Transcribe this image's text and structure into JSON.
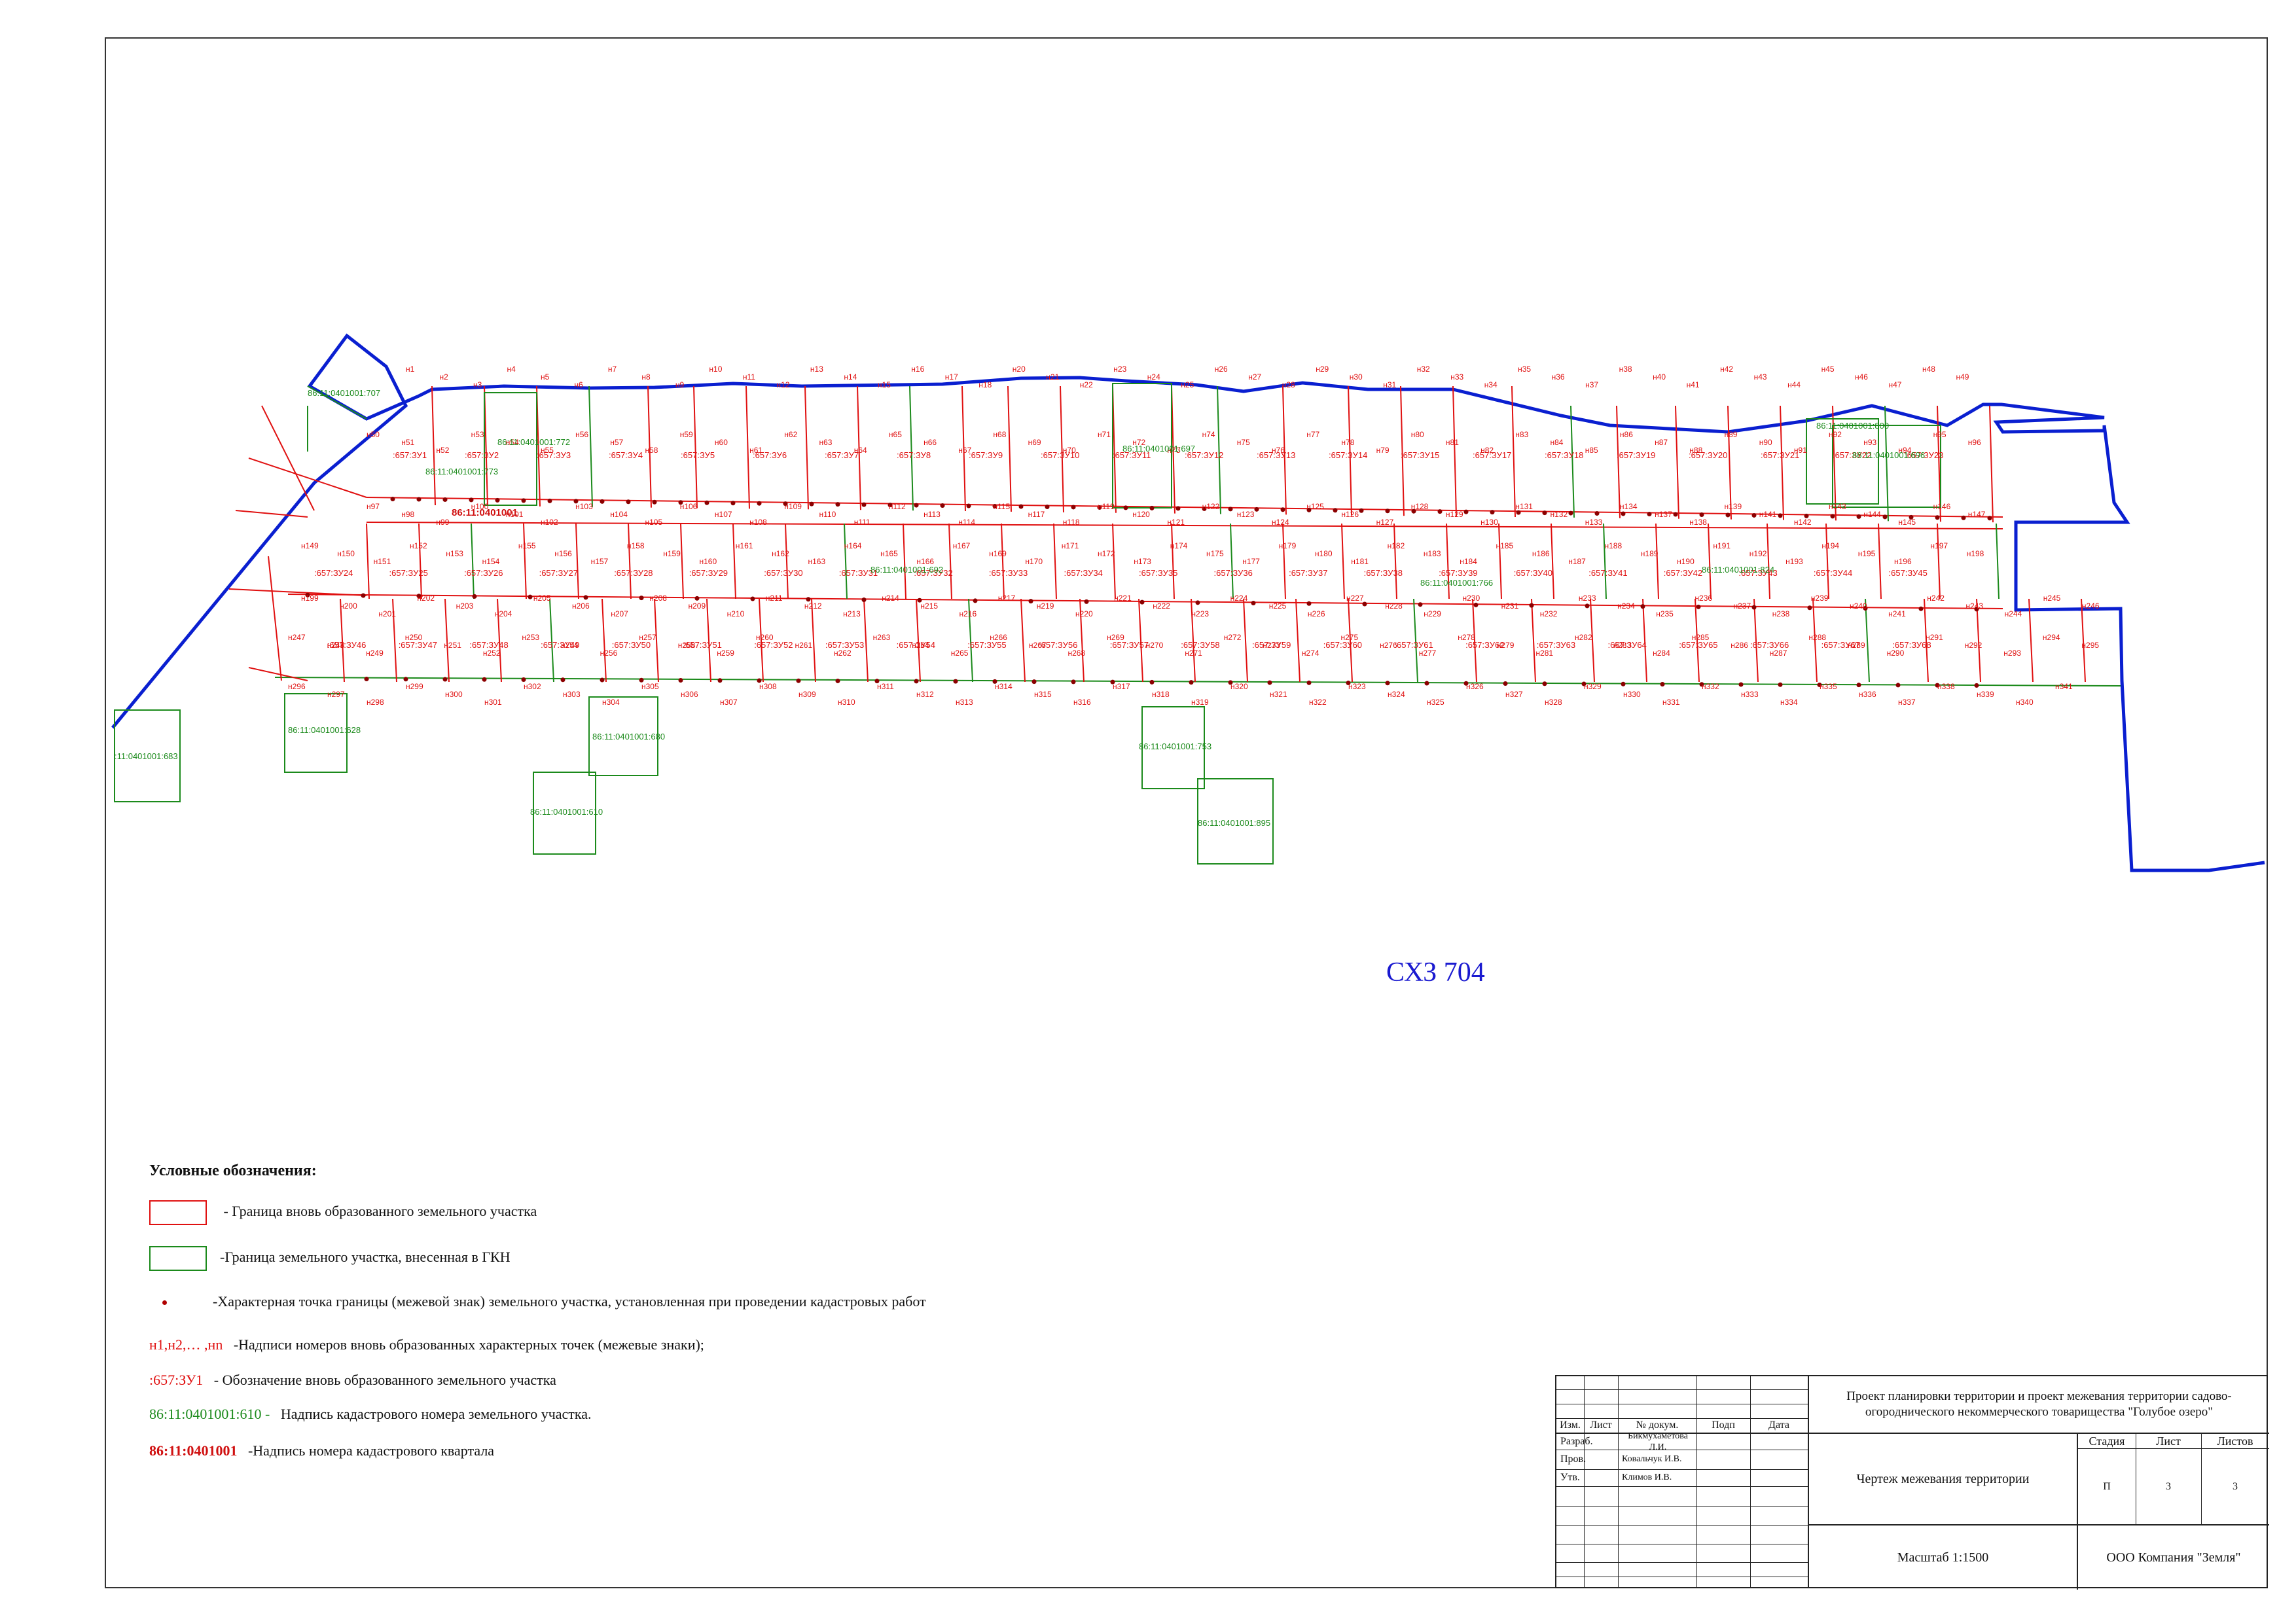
{
  "map": {
    "zone_label": "СХЗ 704",
    "quarter_label": "86:11:0401001",
    "cadastral_labels": [
      "86:11:0401001:707",
      "86:11:0401001:772",
      "86:11:0401001:773",
      "86:11:0401001:692",
      "86:11:0401001:697",
      "86:11:0401001:766",
      "86:11:0401001:824",
      "86:11:0401001:800",
      "86:11:0401001:696",
      "86:11:0401001:628",
      "86:11:0401001:680",
      "86:11:0401001:610",
      "86:11:0401001:753",
      "86:11:0401001:895",
      ":11:0401001:683"
    ],
    "parcel_labels": [
      ":657:ЗУ1",
      ":657:ЗУ2",
      ":657:ЗУ3",
      ":657:ЗУ4",
      ":657:ЗУ5",
      ":657:ЗУ6",
      ":657:ЗУ7",
      ":657:ЗУ8",
      ":657:ЗУ9",
      ":657:ЗУ10",
      ":657:ЗУ11",
      ":657:ЗУ12",
      ":657:ЗУ13",
      ":657:ЗУ14",
      ":657:ЗУ15",
      ":657:ЗУ17",
      ":657:ЗУ18",
      ":657:ЗУ19",
      ":657:ЗУ20",
      ":657:ЗУ21",
      ":657:ЗУ22",
      ":657:ЗУ23",
      ":657:ЗУ24",
      ":657:ЗУ25",
      ":657:ЗУ26",
      ":657:ЗУ27",
      ":657:ЗУ28",
      ":657:ЗУ29",
      ":657:ЗУ30",
      ":657:ЗУ31",
      ":657:ЗУ32",
      ":657:ЗУ33",
      ":657:ЗУ34",
      ":657:ЗУ35",
      ":657:ЗУ36",
      ":657:ЗУ37",
      ":657:ЗУ38",
      ":657:ЗУ39",
      ":657:ЗУ40",
      ":657:ЗУ41",
      ":657:ЗУ42",
      ":657:ЗУ43",
      ":657:ЗУ44",
      ":657:ЗУ45",
      ":657:ЗУ46",
      ":657:ЗУ47",
      ":657:ЗУ48",
      ":657:ЗУ49",
      ":657:ЗУ50",
      ":657:ЗУ51",
      ":657:ЗУ52",
      ":657:ЗУ53",
      ":657:ЗУ54",
      ":657:ЗУ55",
      ":657:ЗУ56",
      ":657:ЗУ57",
      ":657:ЗУ58",
      ":657:ЗУ59",
      ":657:ЗУ60",
      ":657:ЗУ61",
      ":657:ЗУ62",
      ":657:ЗУ63",
      ":657:ЗУ64",
      ":657:ЗУ65",
      ":657:ЗУ66",
      ":657:ЗУ67",
      ":657:ЗУ68"
    ],
    "point_labels": [
      "н1",
      "н2",
      "н3",
      "н4",
      "н5",
      "н6",
      "н7",
      "н8",
      "н9",
      "н10",
      "н11",
      "н12",
      "н13",
      "н14",
      "н15",
      "н16",
      "н17",
      "н18",
      "н20",
      "н21",
      "н22",
      "н23",
      "н24",
      "н25",
      "н26",
      "н27",
      "н28",
      "н29",
      "н30",
      "н31",
      "н32",
      "н33",
      "н34",
      "н35",
      "н36",
      "н37",
      "н38",
      "н40",
      "н41",
      "н42",
      "н43",
      "н44",
      "н45",
      "н46",
      "н47",
      "н48",
      "н49",
      "н50",
      "н51",
      "н52",
      "н53",
      "н54",
      "н55",
      "н56",
      "н57",
      "н58",
      "н59",
      "н60",
      "н61",
      "н62",
      "н63",
      "н64",
      "н65",
      "н66",
      "н67",
      "н68",
      "н69",
      "н70",
      "н71",
      "н72",
      "н73",
      "н74",
      "н75",
      "н76",
      "н77",
      "н78",
      "н79",
      "н80",
      "н81",
      "н82",
      "н83",
      "н84",
      "н85",
      "н86",
      "н87",
      "н88",
      "н89",
      "н90",
      "н91",
      "н92",
      "н93",
      "н94",
      "н95",
      "н96",
      "н97",
      "н98",
      "н99",
      "н100",
      "н101",
      "н102",
      "н103",
      "н104",
      "н105",
      "н106",
      "н107",
      "н108",
      "н109",
      "н110",
      "н111",
      "н112",
      "н113",
      "н114",
      "н115",
      "н117",
      "н118",
      "н119",
      "н120",
      "н121",
      "н122",
      "н123",
      "н124",
      "н125",
      "н126",
      "н127",
      "н128",
      "н129",
      "н130",
      "н131",
      "н132",
      "н133",
      "н134",
      "н137",
      "н138",
      "н139",
      "н141",
      "н142",
      "н143",
      "н144",
      "н145",
      "н146",
      "н147",
      "н149",
      "н150",
      "н151",
      "н152",
      "н153",
      "н154",
      "н155",
      "н156",
      "н157",
      "н158",
      "н159",
      "н160",
      "н161",
      "н162",
      "н163",
      "н164",
      "н165",
      "н166",
      "н167",
      "н169",
      "н170",
      "н171",
      "н172",
      "н173",
      "н174",
      "н175",
      "н177",
      "н179",
      "н180",
      "н181",
      "н182",
      "н183",
      "н184",
      "н185",
      "н186",
      "н187",
      "н188",
      "н189",
      "н190",
      "н191",
      "н192",
      "н193",
      "н194",
      "н195",
      "н196",
      "н197",
      "н198",
      "н199",
      "н200",
      "н201",
      "н202",
      "н203",
      "н204",
      "н205",
      "н206",
      "н207",
      "н208",
      "н209",
      "н210",
      "н211",
      "н212",
      "н213",
      "н214",
      "н215",
      "н216",
      "н217",
      "н219",
      "н220",
      "н221",
      "н222",
      "н223",
      "н224",
      "н225",
      "н226",
      "н227",
      "н228",
      "н229",
      "н230",
      "н231",
      "н232",
      "н233",
      "н234",
      "н235",
      "н236",
      "н237",
      "н238",
      "н239",
      "н240",
      "н241",
      "н242",
      "н243",
      "н244",
      "н245",
      "н246",
      "н247",
      "н248",
      "н249",
      "н250",
      "н251",
      "н252",
      "н253",
      "н254",
      "н256",
      "н257",
      "н258",
      "н259",
      "н260",
      "н261",
      "н262",
      "н263",
      "н264",
      "н265",
      "н266",
      "н267",
      "н268",
      "н269",
      "н270",
      "н271",
      "н272",
      "н273",
      "н274",
      "н275",
      "н276",
      "н277",
      "н278",
      "н279",
      "н281",
      "н282",
      "н283",
      "н284",
      "н285",
      "н286",
      "н287",
      "н288",
      "н289",
      "н290",
      "н291",
      "н292",
      "н293",
      "н294",
      "н295",
      "н296",
      "н297",
      "н298",
      "н299",
      "н300",
      "н301",
      "н302",
      "н303",
      "н304",
      "н305",
      "н306",
      "н307",
      "н308",
      "н309",
      "н310",
      "н311",
      "н312",
      "н313",
      "н314",
      "н315",
      "н316",
      "н317",
      "н318",
      "н319",
      "н320",
      "н321",
      "н322",
      "н323",
      "н324",
      "н325",
      "н326",
      "н327",
      "н328",
      "н329",
      "н330",
      "н331",
      "н332",
      "н333",
      "н334",
      "н335",
      "н336",
      "н337",
      "н338",
      "н339",
      "н340",
      "н341"
    ]
  },
  "legend": {
    "title": "Условные обозначения:",
    "new_boundary": " - Граница вновь образованного земельного участка",
    "gkn_boundary": "-Граница земельного участка, внесенная в ГКН",
    "char_point": "-Характерная точка границы (межевой знак) земельного участка, установленная при проведении кадастровых работ",
    "points_sample": "н1,н2,… ,нn",
    "points_text": "-Надписи номеров вновь образованных характерных точек (межевые знаки);",
    "parcel_sample": ":657:ЗУ1",
    "parcel_text": "-  Обозначение вновь образованного земельного участка",
    "cad_sample": "86:11:0401001:610 -",
    "cad_text": "Надпись кадастрового номера земельного  участка.",
    "quarter_sample": "86:11:0401001",
    "quarter_text": "-Надпись номера кадастрового квартала",
    "colors": {
      "new": "#e01010",
      "gkn": "#1b8a1b",
      "outer": "#0a1fd0"
    }
  },
  "stamp": {
    "project_title": "Проект планировки территории и проект межевания территории садово-огороднического некоммерческого товарищества \"Голубое озеро\"",
    "col_izm": "Изм.",
    "col_list": "Лист",
    "col_doc": "№ докум.",
    "col_sign": "Подп",
    "col_date": "Дата",
    "col_stage": "Стадия",
    "col_sheet": "Лист",
    "col_sheets": "Листов",
    "row_razrab": "Разраб.",
    "row_prov": "Пров.",
    "row_utv": "Утв.",
    "name_razrab": "Бикмухаметова Л.И.",
    "name_prov": "Ковальчук И.В.",
    "name_utv": "Климов И.В.",
    "drawing_title": "Чертеж межевания территории",
    "stage": "П",
    "sheet": "3",
    "sheets": "3",
    "scale": "Масштаб 1:1500",
    "company": "ООО Компания \"Земля\""
  }
}
